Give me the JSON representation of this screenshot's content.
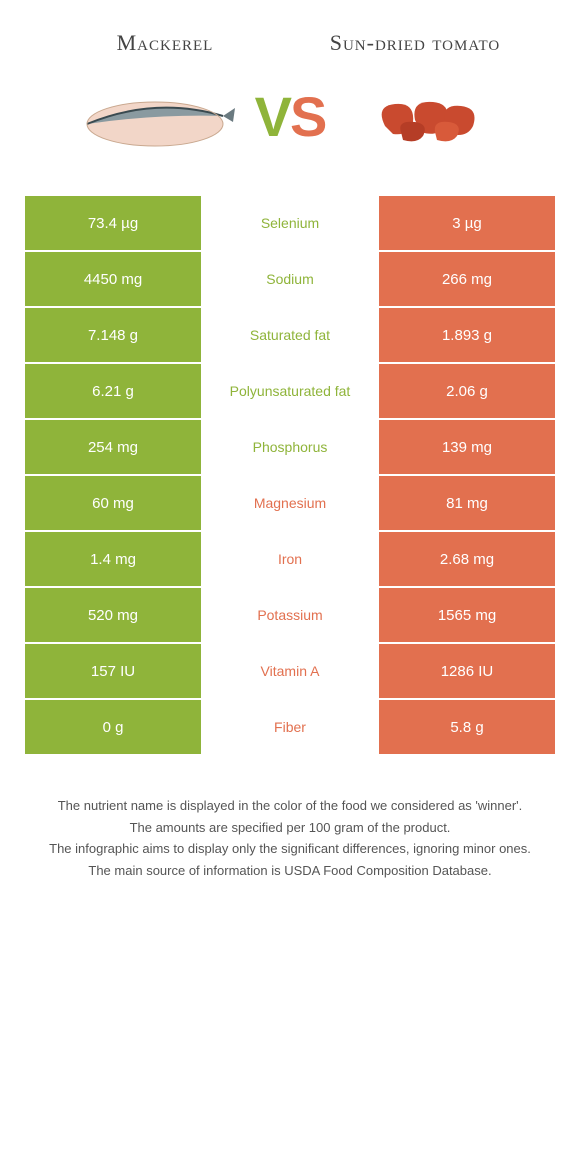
{
  "colors": {
    "left": "#8fb43a",
    "right": "#e2704f",
    "mid_bg": "#ffffff"
  },
  "header": {
    "left_title": "Mackerel",
    "right_title": "Sun-dried tomato",
    "vs_v": "V",
    "vs_s": "S"
  },
  "rows": [
    {
      "left": "73.4 µg",
      "label": "Selenium",
      "right": "3 µg",
      "winner": "left"
    },
    {
      "left": "4450 mg",
      "label": "Sodium",
      "right": "266 mg",
      "winner": "left"
    },
    {
      "left": "7.148 g",
      "label": "Saturated fat",
      "right": "1.893 g",
      "winner": "left"
    },
    {
      "left": "6.21 g",
      "label": "Polyunsaturated fat",
      "right": "2.06 g",
      "winner": "left"
    },
    {
      "left": "254 mg",
      "label": "Phosphorus",
      "right": "139 mg",
      "winner": "left"
    },
    {
      "left": "60 mg",
      "label": "Magnesium",
      "right": "81 mg",
      "winner": "right"
    },
    {
      "left": "1.4 mg",
      "label": "Iron",
      "right": "2.68 mg",
      "winner": "right"
    },
    {
      "left": "520 mg",
      "label": "Potassium",
      "right": "1565 mg",
      "winner": "right"
    },
    {
      "left": "157 IU",
      "label": "Vitamin A",
      "right": "1286 IU",
      "winner": "right"
    },
    {
      "left": "0 g",
      "label": "Fiber",
      "right": "5.8 g",
      "winner": "right"
    }
  ],
  "footer": {
    "line1": "The nutrient name is displayed in the color of the food we considered as 'winner'.",
    "line2": "The amounts are specified per 100 gram of the product.",
    "line3": "The infographic aims to display only the significant differences, ignoring minor ones.",
    "line4": "The main source of information is USDA Food Composition Database."
  }
}
